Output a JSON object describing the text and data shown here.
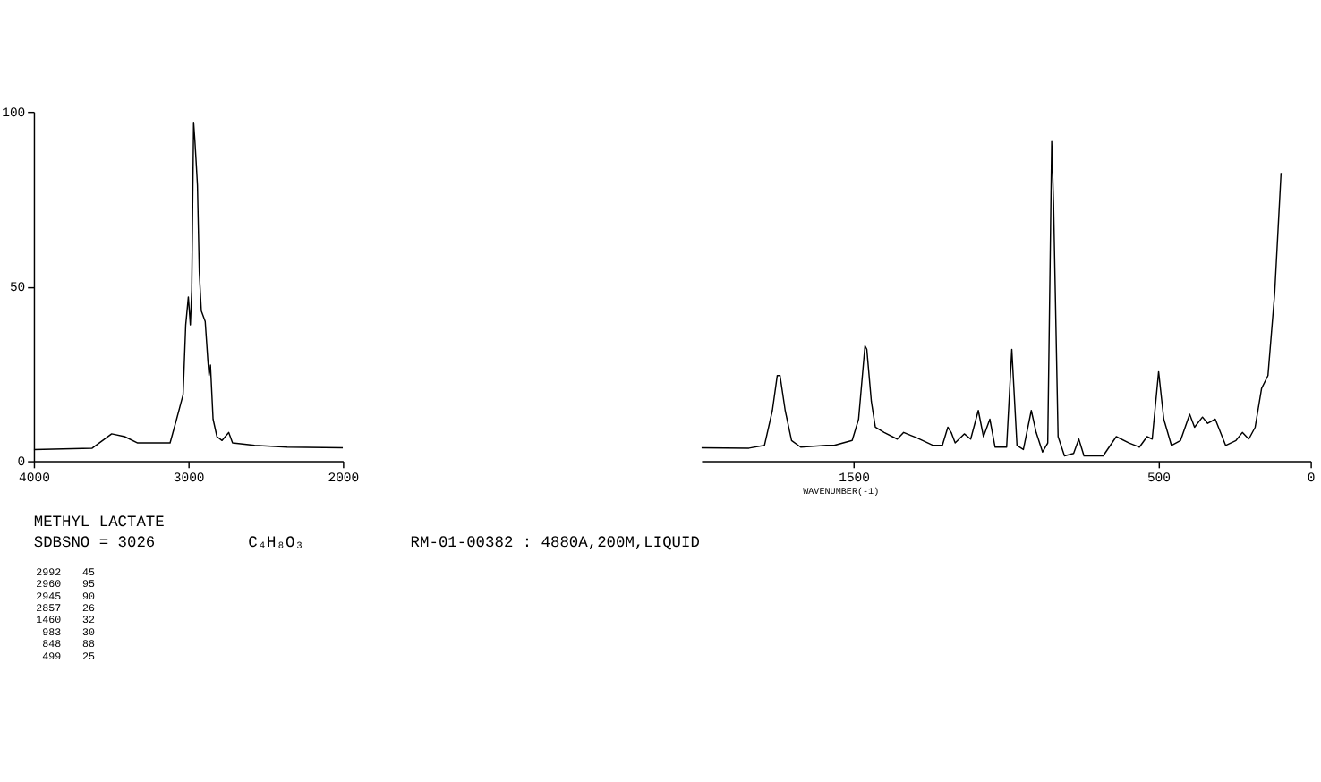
{
  "chart_data": [
    {
      "type": "line",
      "xlim": [
        4000,
        2000
      ],
      "xticks": [
        4000,
        3000,
        2000
      ],
      "ylim": [
        0,
        100
      ],
      "yticks": [
        0,
        50,
        100
      ],
      "grid": false,
      "legend": false,
      "annotations": [
        "METHYL LACTATE",
        "SDBSNO = 3026",
        "C₄H₈O₃",
        "RM-01-00382 : 4880A,200M,LIQUID",
        "2992 45",
        "2960 95",
        "2945 90",
        "2857 26",
        "1460 32",
        "983 30",
        "848 88",
        "499 25"
      ],
      "series": [
        {
          "color": "#000000",
          "x": [
            4000,
            3622,
            3496,
            3412,
            3328,
            3118,
            3076,
            3034,
            3017,
            3000,
            2987,
            2978,
            2966,
            2958,
            2950,
            2941,
            2929,
            2916,
            2891,
            2874,
            2866,
            2857,
            2840,
            2815,
            2782,
            2739,
            2714,
            2571,
            2361,
            2000
          ],
          "values": [
            3.3,
            3.7,
            7.8,
            7,
            5.2,
            5.2,
            12,
            19,
            39,
            47,
            39,
            49,
            97,
            92,
            86,
            79,
            54,
            43,
            40,
            29,
            24.5,
            27.5,
            12,
            7,
            5.9,
            8.2,
            5.2,
            4.5,
            4,
            3.8
          ]
        }
      ]
    },
    {
      "type": "line",
      "xlabel": "WAVENUMBER(-1)",
      "xlim": [
        2000,
        0
      ],
      "xticks": [
        1500,
        500,
        0
      ],
      "ylim": [
        0,
        100
      ],
      "tick_labels": "x",
      "grid": false,
      "legend": false,
      "series": [
        {
          "color": "#000000",
          "x": [
            2000,
            1844,
            1793,
            1767,
            1751,
            1742,
            1725,
            1704,
            1674,
            1590,
            1564,
            1505,
            1484,
            1463,
            1457,
            1442,
            1429,
            1400,
            1357,
            1336,
            1294,
            1239,
            1209,
            1191,
            1180,
            1167,
            1137,
            1116,
            1091,
            1074,
            1053,
            1036,
            998,
            981,
            964,
            943,
            917,
            901,
            880,
            863,
            850,
            844,
            829,
            808,
            778,
            761,
            744,
            681,
            638,
            596,
            562,
            537,
            520,
            499,
            482,
            457,
            427,
            397,
            381,
            355,
            338,
            313,
            279,
            245,
            224,
            203,
            182,
            161,
            140,
            118,
            97
          ],
          "values": [
            3.8,
            3.7,
            4.5,
            14.5,
            24.5,
            24.5,
            14.5,
            5.9,
            4,
            4.5,
            4.5,
            5.9,
            12,
            33,
            32,
            17,
            9.7,
            8.2,
            6.3,
            8.2,
            6.7,
            4.5,
            4.5,
            9.7,
            8.2,
            5.2,
            7.8,
            6.3,
            14.5,
            7,
            12,
            4,
            4,
            32,
            4.5,
            3.3,
            14.5,
            8.2,
            2.6,
            5.2,
            91.5,
            74,
            7,
            1.5,
            2.2,
            6.3,
            1.5,
            1.5,
            7,
            5.2,
            4,
            7,
            6.3,
            25.6,
            12,
            4.5,
            5.9,
            13.4,
            9.7,
            12.6,
            10.8,
            12,
            4.5,
            5.9,
            8.2,
            6.3,
            9.7,
            20.8,
            24.5,
            48,
            82.5
          ]
        }
      ]
    }
  ]
}
